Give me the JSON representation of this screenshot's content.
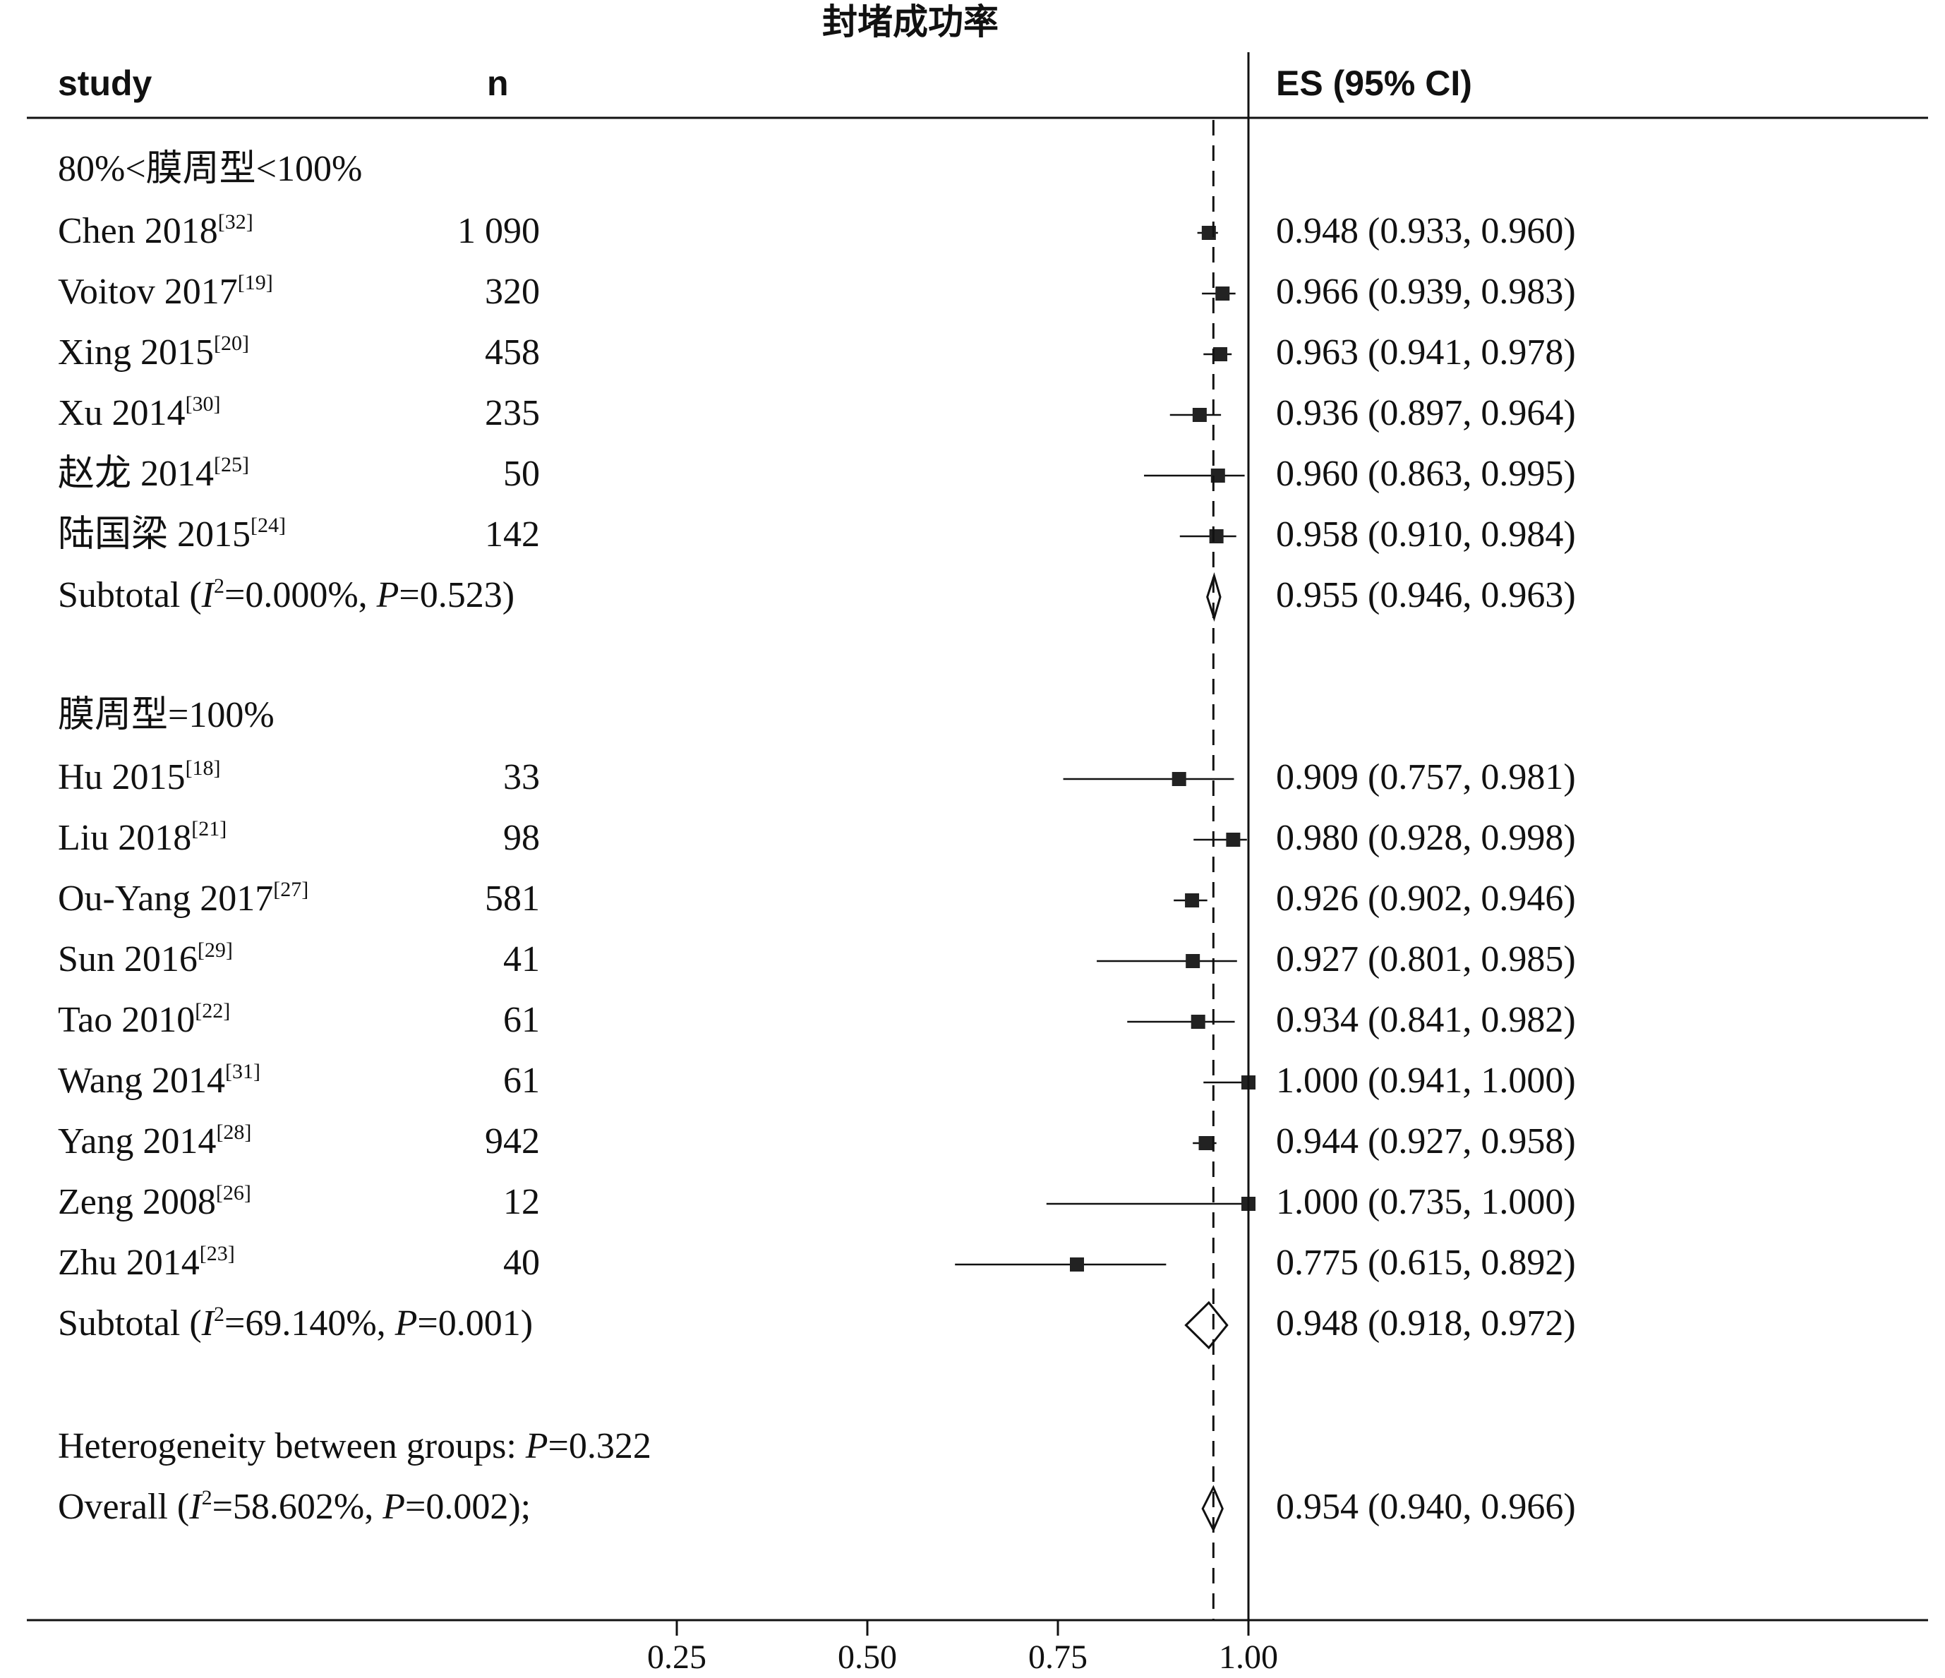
{
  "chart_data": {
    "type": "forest",
    "title": "封堵成功率",
    "columns": {
      "study": "study",
      "n": "n",
      "es": "ES (95% CI)"
    },
    "groups": [
      {
        "label": "80%<膜周型<100%",
        "studies": [
          {
            "name": "Chen 2018",
            "ref": "[32]",
            "n": "1 090",
            "es": 0.948,
            "lo": 0.933,
            "hi": 0.96,
            "es_text": "0.948 (0.933, 0.960)"
          },
          {
            "name": "Voitov 2017",
            "ref": "[19]",
            "n": "320",
            "es": 0.966,
            "lo": 0.939,
            "hi": 0.983,
            "es_text": "0.966 (0.939, 0.983)"
          },
          {
            "name": "Xing 2015",
            "ref": "[20]",
            "n": "458",
            "es": 0.963,
            "lo": 0.941,
            "hi": 0.978,
            "es_text": "0.963 (0.941, 0.978)"
          },
          {
            "name": "Xu 2014",
            "ref": "[30]",
            "n": "235",
            "es": 0.936,
            "lo": 0.897,
            "hi": 0.964,
            "es_text": "0.936 (0.897, 0.964)"
          },
          {
            "name": "赵龙 2014",
            "ref": "[25]",
            "n": "50",
            "es": 0.96,
            "lo": 0.863,
            "hi": 0.995,
            "es_text": "0.960 (0.863, 0.995)"
          },
          {
            "name": "陆国梁 2015",
            "ref": "[24]",
            "n": "142",
            "es": 0.958,
            "lo": 0.91,
            "hi": 0.984,
            "es_text": "0.958 (0.910, 0.984)"
          }
        ],
        "subtotal": {
          "label_prefix": "Subtotal  (",
          "i2_symbol": "I",
          "i2_sup": "2",
          "i2_value": "=0.000%, ",
          "p_symbol": "P",
          "p_value": "=0.523)",
          "es": 0.955,
          "lo": 0.946,
          "hi": 0.963,
          "es_text": "0.955 (0.946, 0.963)"
        }
      },
      {
        "label": "膜周型=100%",
        "studies": [
          {
            "name": "Hu 2015",
            "ref": "[18]",
            "n": "33",
            "es": 0.909,
            "lo": 0.757,
            "hi": 0.981,
            "es_text": "0.909 (0.757, 0.981)"
          },
          {
            "name": "Liu 2018",
            "ref": "[21]",
            "n": "98",
            "es": 0.98,
            "lo": 0.928,
            "hi": 0.998,
            "es_text": "0.980 (0.928, 0.998)"
          },
          {
            "name": "Ou-Yang 2017",
            "ref": "[27]",
            "n": "581",
            "es": 0.926,
            "lo": 0.902,
            "hi": 0.946,
            "es_text": "0.926 (0.902, 0.946)"
          },
          {
            "name": "Sun 2016",
            "ref": "[29]",
            "n": "41",
            "es": 0.927,
            "lo": 0.801,
            "hi": 0.985,
            "es_text": "0.927 (0.801, 0.985)"
          },
          {
            "name": "Tao 2010",
            "ref": "[22]",
            "n": "61",
            "es": 0.934,
            "lo": 0.841,
            "hi": 0.982,
            "es_text": "0.934 (0.841, 0.982)"
          },
          {
            "name": "Wang 2014",
            "ref": "[31]",
            "n": "61",
            "es": 1.0,
            "lo": 0.941,
            "hi": 1.0,
            "es_text": "1.000 (0.941, 1.000)"
          },
          {
            "name": "Yang 2014",
            "ref": "[28]",
            "n": "942",
            "es": 0.944,
            "lo": 0.927,
            "hi": 0.958,
            "es_text": "0.944 (0.927, 0.958)"
          },
          {
            "name": "Zeng 2008",
            "ref": "[26]",
            "n": "12",
            "es": 1.0,
            "lo": 0.735,
            "hi": 1.0,
            "es_text": "1.000 (0.735, 1.000)"
          },
          {
            "name": "Zhu 2014",
            "ref": "[23]",
            "n": "40",
            "es": 0.775,
            "lo": 0.615,
            "hi": 0.892,
            "es_text": "0.775 (0.615, 0.892)"
          }
        ],
        "subtotal": {
          "label_prefix": "Subtotal  (",
          "i2_symbol": "I",
          "i2_sup": "2",
          "i2_value": "=69.140%, ",
          "p_symbol": "P",
          "p_value": "=0.001)",
          "es": 0.948,
          "lo": 0.918,
          "hi": 0.972,
          "es_text": "0.948 (0.918, 0.972)"
        }
      }
    ],
    "heterogeneity": {
      "prefix": "Heterogeneity between groups: ",
      "p_symbol": "P",
      "p_value": "=0.322"
    },
    "overall": {
      "label_prefix": "Overall  (",
      "i2_symbol": "I",
      "i2_sup": "2",
      "i2_value": "=58.602%, ",
      "p_symbol": "P",
      "p_value": "=0.002);",
      "es": 0.954,
      "lo": 0.94,
      "hi": 0.966,
      "es_text": "0.954 (0.940, 0.966)"
    },
    "x_ticks": [
      0.25,
      0.5,
      0.75,
      1.0
    ],
    "x_tick_labels": [
      "0.25",
      "0.50",
      "0.75",
      "1.00"
    ],
    "null_line": 1.0,
    "pooled_line": 0.954
  }
}
